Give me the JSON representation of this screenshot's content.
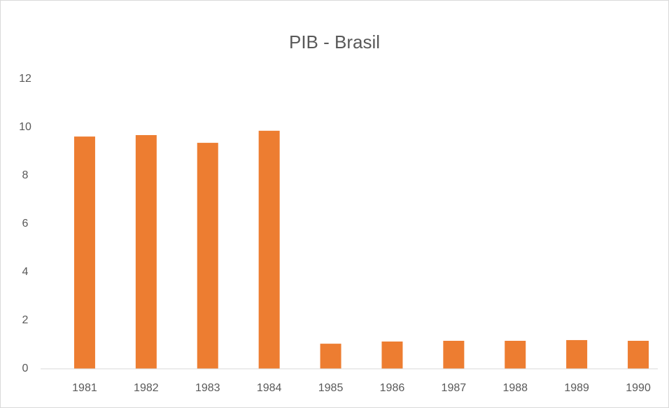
{
  "chart_data": {
    "type": "bar",
    "title": "PIB - Brasil",
    "categories": [
      "1981",
      "1982",
      "1983",
      "1984",
      "1985",
      "1986",
      "1987",
      "1988",
      "1989",
      "1990"
    ],
    "values": [
      9.62,
      9.68,
      9.36,
      9.86,
      1.04,
      1.13,
      1.16,
      1.16,
      1.19,
      1.16
    ],
    "color": "#ed7d31",
    "ylim": [
      0,
      12
    ],
    "yticks": [
      0,
      2,
      4,
      6,
      8,
      10,
      12
    ],
    "grid": false
  }
}
